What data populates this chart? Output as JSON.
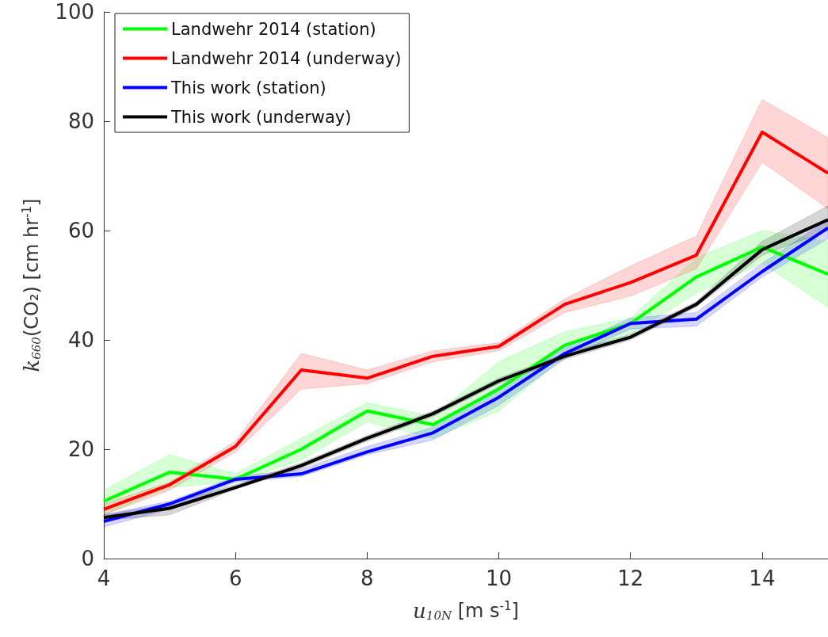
{
  "chart_data": {
    "type": "line",
    "xlabel": "u$_{10N}$ [m s$^{-1}$]",
    "ylabel": "k$_{660}$(CO₂) [cm hr$^{-1}$]",
    "x": [
      4,
      5,
      6,
      7,
      8,
      9,
      10,
      11,
      12,
      13,
      14,
      15
    ],
    "xlim": [
      4,
      15
    ],
    "xticks": [
      4,
      6,
      8,
      10,
      12,
      14
    ],
    "ylim": [
      0,
      100
    ],
    "yticks": [
      0,
      20,
      40,
      60,
      80,
      100
    ],
    "grid": false,
    "legend": "top left",
    "marker": "none",
    "line_style": "solid",
    "series": [
      {
        "name": "Landwehr 2014 (station)",
        "color": "#00ff00",
        "values": [
          10.5,
          15.8,
          14.5,
          20,
          27,
          24.5,
          31,
          39,
          43,
          51.5,
          57,
          52
        ],
        "lower": [
          8,
          13,
          14,
          18,
          25,
          22,
          27,
          37,
          41,
          48.5,
          54,
          46
        ],
        "upper": [
          12.5,
          19,
          15.5,
          22,
          28.5,
          26,
          36,
          41.5,
          44,
          55,
          60,
          58
        ]
      },
      {
        "name": "Landwehr 2014 (underway)",
        "color": "#ff0000",
        "values": [
          9,
          13.5,
          20.5,
          34.5,
          33,
          37,
          38.8,
          46.5,
          50.5,
          55.5,
          78,
          70.5
        ],
        "lower": [
          8,
          12.5,
          19.5,
          31,
          32,
          36,
          38,
          45,
          48,
          53,
          72.5,
          64
        ],
        "upper": [
          10,
          14,
          21.5,
          37.5,
          34.5,
          38,
          39.5,
          47.5,
          53.5,
          59,
          84,
          77
        ]
      },
      {
        "name": "This work (station)",
        "color": "#0000ff",
        "values": [
          6.8,
          10,
          14.5,
          15.5,
          19.5,
          23,
          29.5,
          37.5,
          43,
          43.8,
          52.5,
          60.5
        ],
        "lower": [
          5.8,
          9,
          14,
          15,
          19,
          21.7,
          28,
          36.5,
          42,
          42.5,
          51.5,
          58.5
        ],
        "upper": [
          8,
          10.5,
          15,
          16.3,
          20.5,
          24,
          31.5,
          38.5,
          44,
          45,
          54,
          62
        ]
      },
      {
        "name": "This work (underway)",
        "color": "#000000",
        "values": [
          7.5,
          9.2,
          13,
          17,
          22,
          26.5,
          32.5,
          37,
          40.5,
          46.5,
          56.5,
          62
        ],
        "lower": [
          7,
          8,
          12.7,
          16.5,
          21.5,
          26,
          32,
          36.5,
          40,
          46,
          55.5,
          60
        ],
        "upper": [
          8,
          10,
          13.5,
          17.5,
          22.5,
          27,
          33,
          37.5,
          41,
          47,
          58,
          64.5
        ]
      }
    ]
  }
}
